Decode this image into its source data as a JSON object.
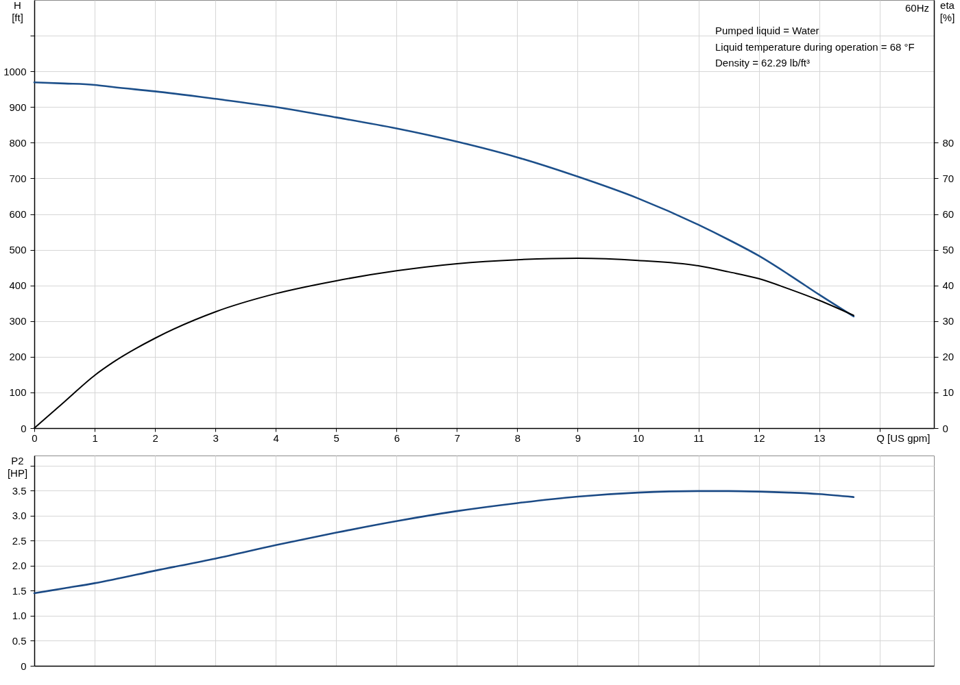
{
  "chart_data": [
    {
      "type": "line",
      "x": [
        0,
        0.5,
        1,
        1.3,
        2,
        3,
        4,
        5,
        6,
        7,
        8,
        9,
        10,
        11,
        11.5,
        12,
        12.5,
        13,
        13.57
      ],
      "series": [
        {
          "color": "#1c4f8a",
          "values": [
            969,
            966,
            962,
            956,
            944,
            923,
            900,
            871,
            840,
            803,
            759,
            705,
            644,
            570,
            528,
            483,
            430,
            374,
            313
          ]
        },
        {
          "color": "#000000",
          "axis": "y2",
          "values": [
            0,
            7.4,
            14.8,
            18.4,
            25.2,
            32.6,
            37.7,
            41.3,
            44.1,
            46.1,
            47.2,
            47.6,
            47.0,
            45.5,
            43.8,
            41.9,
            39.0,
            35.8,
            31.6
          ]
        }
      ],
      "xlim": [
        0,
        14.9
      ],
      "xticks": [
        0,
        1,
        2,
        3,
        4,
        5,
        6,
        7,
        8,
        9,
        10,
        11,
        12,
        13,
        {
          "value": 14,
          "label": null
        }
      ],
      "ylim": [
        0,
        1200
      ],
      "yticks": [
        0,
        100,
        200,
        300,
        400,
        500,
        600,
        700,
        800,
        900,
        1000,
        {
          "value": 1100,
          "label": null
        }
      ],
      "y2lim": [
        0,
        120
      ],
      "y2ticks": [
        0,
        10,
        20,
        30,
        40,
        50,
        60,
        70,
        80
      ],
      "xlabel": "Q [US gpm]",
      "ylabel": "H [ft]",
      "y2label": "eta [%]",
      "grid": true,
      "annotations": [
        "60Hz",
        "Pumped liquid = Water",
        "Liquid temperature during operation = 68 °F",
        "Density = 62.29 lb/ft³"
      ]
    },
    {
      "type": "line",
      "x": [
        0,
        0.5,
        1,
        1.3,
        2,
        3,
        4,
        5,
        6,
        7,
        8,
        9,
        10,
        11,
        11.5,
        12,
        12.5,
        13,
        13.57
      ],
      "series": [
        {
          "color": "#1b4a85",
          "values": [
            1.45,
            1.55,
            1.65,
            1.72,
            1.9,
            2.14,
            2.41,
            2.66,
            2.89,
            3.09,
            3.25,
            3.38,
            3.46,
            3.49,
            3.49,
            3.48,
            3.46,
            3.43,
            3.37
          ]
        }
      ],
      "xlim": [
        0,
        14.9
      ],
      "xticks": [
        0,
        1,
        2,
        3,
        4,
        5,
        6,
        7,
        8,
        9,
        10,
        11,
        12,
        13,
        14
      ],
      "ylim": [
        0,
        4.2
      ],
      "yticks": [
        0,
        0.5,
        {
          "value": 1,
          "label": "1.0"
        },
        1.5,
        {
          "value": 2,
          "label": "2.0"
        },
        2.5,
        {
          "value": 3,
          "label": "3.0"
        },
        3.5,
        {
          "value": 4,
          "label": null
        }
      ],
      "ylabel": "P2 [HP]",
      "grid": true,
      "tick_labels": "y"
    }
  ]
}
